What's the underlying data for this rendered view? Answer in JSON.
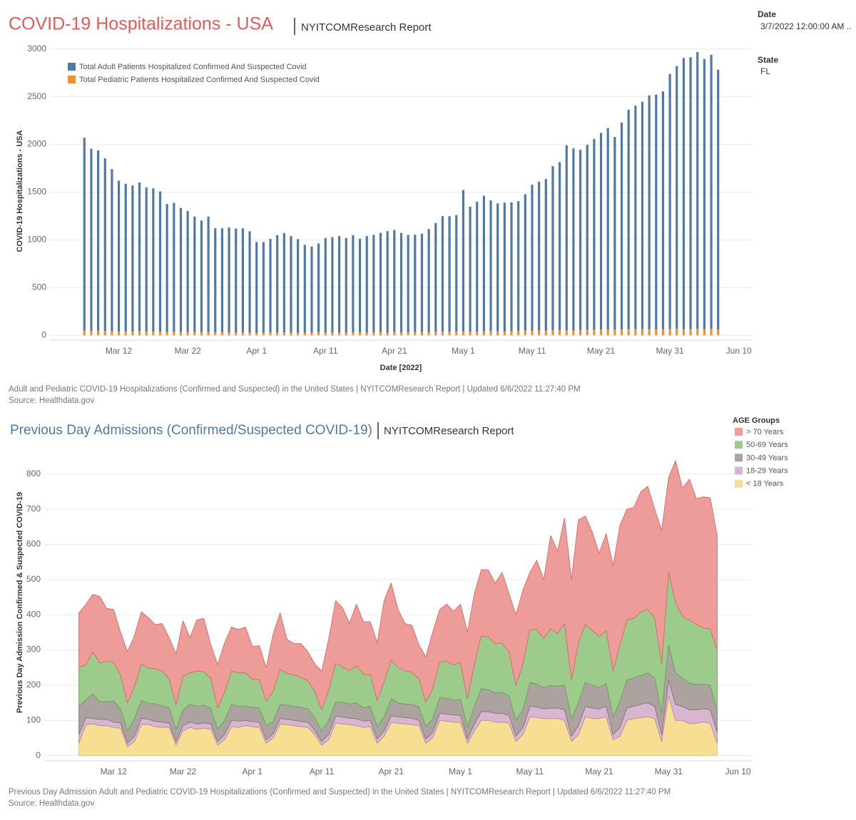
{
  "filters": [
    {
      "label": "Date",
      "value": "3/7/2022 12:00:00 AM .."
    },
    {
      "label": "State",
      "value": "FL"
    }
  ],
  "chart_data": [
    {
      "type": "bar",
      "stacked": true,
      "title": "COVID-19 Hospitalizations - USA",
      "subtitle": "NYITCOMResearch Report",
      "y_label": "COVID-19 Hospitalizations - USA",
      "x_label": "Date [2022]",
      "caption": "Adult and Pediatric COVID-19 Hospitalizations (Confirmed and Suspected) in the United States | NYITCOMResearch Report | Updated 6/6/2022 11:27:40 PM",
      "source": "Source: Healthdata.gov",
      "legend": "top-left",
      "grid": true,
      "x": [
        "2022-03-07",
        "2022-03-08",
        "2022-03-09",
        "2022-03-10",
        "2022-03-11",
        "2022-03-12",
        "2022-03-13",
        "2022-03-14",
        "2022-03-15",
        "2022-03-16",
        "2022-03-17",
        "2022-03-18",
        "2022-03-19",
        "2022-03-20",
        "2022-03-21",
        "2022-03-22",
        "2022-03-23",
        "2022-03-24",
        "2022-03-25",
        "2022-03-26",
        "2022-03-27",
        "2022-03-28",
        "2022-03-29",
        "2022-03-30",
        "2022-03-31",
        "2022-04-01",
        "2022-04-02",
        "2022-04-03",
        "2022-04-04",
        "2022-04-05",
        "2022-04-06",
        "2022-04-07",
        "2022-04-08",
        "2022-04-09",
        "2022-04-10",
        "2022-04-11",
        "2022-04-12",
        "2022-04-13",
        "2022-04-14",
        "2022-04-15",
        "2022-04-16",
        "2022-04-17",
        "2022-04-18",
        "2022-04-19",
        "2022-04-20",
        "2022-04-21",
        "2022-04-22",
        "2022-04-23",
        "2022-04-24",
        "2022-04-25",
        "2022-04-26",
        "2022-04-27",
        "2022-04-28",
        "2022-04-29",
        "2022-04-30",
        "2022-05-01",
        "2022-05-02",
        "2022-05-03",
        "2022-05-04",
        "2022-05-05",
        "2022-05-06",
        "2022-05-07",
        "2022-05-08",
        "2022-05-09",
        "2022-05-10",
        "2022-05-11",
        "2022-05-12",
        "2022-05-13",
        "2022-05-14",
        "2022-05-15",
        "2022-05-16",
        "2022-05-17",
        "2022-05-18",
        "2022-05-19",
        "2022-05-20",
        "2022-05-21",
        "2022-05-22",
        "2022-05-23",
        "2022-05-24",
        "2022-05-25",
        "2022-05-26",
        "2022-05-27",
        "2022-05-28",
        "2022-05-29",
        "2022-05-30",
        "2022-05-31",
        "2022-06-01",
        "2022-06-02",
        "2022-06-03",
        "2022-06-04",
        "2022-06-05",
        "2022-06-06",
        "2022-06-07"
      ],
      "series": [
        {
          "name": "Total Adult Patients Hospitalized Confirmed And Suspected Covid",
          "color": "#4e79a7",
          "values": [
            2020,
            1910,
            1890,
            1810,
            1700,
            1580,
            1550,
            1530,
            1560,
            1510,
            1500,
            1470,
            1340,
            1350,
            1300,
            1270,
            1210,
            1170,
            1210,
            1090,
            1090,
            1100,
            1090,
            1090,
            1060,
            950,
            950,
            980,
            1020,
            1040,
            1010,
            980,
            920,
            900,
            930,
            990,
            1000,
            1010,
            990,
            1020,
            980,
            1010,
            1020,
            1040,
            1060,
            1070,
            1040,
            1020,
            1020,
            1030,
            1080,
            1140,
            1210,
            1210,
            1220,
            1480,
            1310,
            1360,
            1420,
            1370,
            1340,
            1350,
            1350,
            1360,
            1430,
            1530,
            1560,
            1590,
            1720,
            1760,
            1940,
            1910,
            1890,
            1940,
            2000,
            2060,
            2110,
            2020,
            2170,
            2300,
            2340,
            2380,
            2450,
            2460,
            2490,
            2670,
            2750,
            2840,
            2850,
            2900,
            2830,
            2870,
            2720
          ]
        },
        {
          "name": "Total Pediatric Patients Hospitalized Confirmed And Suspected Covid",
          "color": "#f28e2b",
          "values": [
            50,
            45,
            48,
            45,
            42,
            40,
            38,
            40,
            42,
            40,
            40,
            38,
            36,
            38,
            35,
            34,
            35,
            33,
            34,
            32,
            32,
            30,
            30,
            32,
            30,
            28,
            28,
            30,
            30,
            32,
            30,
            28,
            28,
            30,
            32,
            30,
            30,
            32,
            30,
            30,
            32,
            30,
            32,
            34,
            32,
            34,
            33,
            32,
            34,
            35,
            34,
            36,
            38,
            38,
            40,
            42,
            38,
            40,
            42,
            44,
            42,
            40,
            44,
            46,
            48,
            48,
            50,
            48,
            52,
            54,
            52,
            50,
            55,
            56,
            58,
            60,
            62,
            58,
            60,
            64,
            66,
            68,
            64,
            62,
            66,
            68,
            70,
            66,
            64,
            68,
            66,
            70,
            62
          ]
        }
      ],
      "xlim": [
        "2022-03-02",
        "2022-06-12"
      ],
      "xticks": [
        {
          "value": "2022-03-12",
          "label": "Mar 12"
        },
        {
          "value": "2022-03-22",
          "label": "Mar 22"
        },
        {
          "value": "2022-04-01",
          "label": "Apr 1"
        },
        {
          "value": "2022-04-11",
          "label": "Apr 11"
        },
        {
          "value": "2022-04-21",
          "label": "Apr 21"
        },
        {
          "value": "2022-05-01",
          "label": "May 1"
        },
        {
          "value": "2022-05-11",
          "label": "May 11"
        },
        {
          "value": "2022-05-21",
          "label": "May 21"
        },
        {
          "value": "2022-05-31",
          "label": "May 31"
        },
        {
          "value": "2022-06-10",
          "label": "Jun 10"
        }
      ],
      "ylim": [
        -50,
        3050
      ],
      "yticks": [
        0,
        500,
        1000,
        1500,
        2000,
        2500,
        3000
      ]
    },
    {
      "type": "area",
      "stacked": true,
      "title": "Previous Day Admissions (Confirmed/Suspected COVID-19)",
      "subtitle": "NYITCOMResearch Report",
      "y_label": "Previous Day Admission Confirmed & Suspected COVID-19",
      "caption": "Previous Day Admission Adult and Pediatric COVID-19 Hospitalizations (Confirmed and Suspected) in the United States | NYITCOMResearch Report | Updated 6/6/2022 11:27:40 PM",
      "source": "Source: Healthdata.gov",
      "legend_title": "AGE Groups",
      "legend": "outside-right",
      "grid": true,
      "x": [
        "2022-03-07",
        "2022-03-08",
        "2022-03-09",
        "2022-03-10",
        "2022-03-11",
        "2022-03-12",
        "2022-03-13",
        "2022-03-14",
        "2022-03-15",
        "2022-03-16",
        "2022-03-17",
        "2022-03-18",
        "2022-03-19",
        "2022-03-20",
        "2022-03-21",
        "2022-03-22",
        "2022-03-23",
        "2022-03-24",
        "2022-03-25",
        "2022-03-26",
        "2022-03-27",
        "2022-03-28",
        "2022-03-29",
        "2022-03-30",
        "2022-03-31",
        "2022-04-01",
        "2022-04-02",
        "2022-04-03",
        "2022-04-04",
        "2022-04-05",
        "2022-04-06",
        "2022-04-07",
        "2022-04-08",
        "2022-04-09",
        "2022-04-10",
        "2022-04-11",
        "2022-04-12",
        "2022-04-13",
        "2022-04-14",
        "2022-04-15",
        "2022-04-16",
        "2022-04-17",
        "2022-04-18",
        "2022-04-19",
        "2022-04-20",
        "2022-04-21",
        "2022-04-22",
        "2022-04-23",
        "2022-04-24",
        "2022-04-25",
        "2022-04-26",
        "2022-04-27",
        "2022-04-28",
        "2022-04-29",
        "2022-04-30",
        "2022-05-01",
        "2022-05-02",
        "2022-05-03",
        "2022-05-04",
        "2022-05-05",
        "2022-05-06",
        "2022-05-07",
        "2022-05-08",
        "2022-05-09",
        "2022-05-10",
        "2022-05-11",
        "2022-05-12",
        "2022-05-13",
        "2022-05-14",
        "2022-05-15",
        "2022-05-16",
        "2022-05-17",
        "2022-05-18",
        "2022-05-19",
        "2022-05-20",
        "2022-05-21",
        "2022-05-22",
        "2022-05-23",
        "2022-05-24",
        "2022-05-25",
        "2022-05-26",
        "2022-05-27",
        "2022-05-28",
        "2022-05-29",
        "2022-05-30",
        "2022-05-31",
        "2022-06-01",
        "2022-06-02",
        "2022-06-03",
        "2022-06-04",
        "2022-06-05",
        "2022-06-06",
        "2022-06-07"
      ],
      "series": [
        {
          "name": "> 70 Years",
          "color": "#ee9c99",
          "values": [
            155,
            172,
            163,
            189,
            150,
            150,
            122,
            145,
            145,
            147,
            144,
            125,
            135,
            118,
            143,
            158,
            100,
            145,
            152,
            95,
            123,
            140,
            125,
            123,
            130,
            93,
            97,
            95,
            163,
            160,
            97,
            88,
            96,
            82,
            78,
            110,
            145,
            178,
            168,
            134,
            175,
            149,
            150,
            163,
            230,
            219,
            165,
            134,
            134,
            97,
            128,
            160,
            150,
            162,
            153,
            165,
            188,
            200,
            188,
            191,
            172,
            200,
            166,
            200,
            210,
            162,
            197,
            167,
            265,
            233,
            300,
            285,
            350,
            307,
            280,
            237,
            275,
            300,
            340,
            315,
            315,
            342,
            350,
            310,
            380,
            270,
            403,
            365,
            400,
            358,
            372,
            372,
            325
          ]
        },
        {
          "name": "50-69 Years",
          "color": "#9ccb8c",
          "values": [
            110,
            100,
            120,
            110,
            115,
            110,
            95,
            80,
            90,
            105,
            100,
            100,
            100,
            80,
            70,
            95,
            90,
            100,
            95,
            85,
            60,
            80,
            95,
            95,
            95,
            80,
            80,
            70,
            85,
            100,
            90,
            90,
            85,
            80,
            75,
            60,
            85,
            110,
            100,
            95,
            105,
            95,
            90,
            75,
            100,
            110,
            100,
            95,
            90,
            80,
            70,
            85,
            100,
            105,
            100,
            105,
            80,
            120,
            150,
            150,
            140,
            140,
            125,
            100,
            130,
            150,
            155,
            140,
            160,
            150,
            175,
            110,
            170,
            165,
            155,
            145,
            150,
            130,
            160,
            170,
            170,
            180,
            180,
            170,
            140,
            205,
            200,
            175,
            180,
            170,
            160,
            160,
            175
          ]
        },
        {
          "name": "30-49 Years",
          "color": "#aca2a0",
          "values": [
            80,
            50,
            70,
            50,
            50,
            60,
            40,
            35,
            50,
            50,
            45,
            50,
            45,
            45,
            35,
            45,
            50,
            50,
            50,
            45,
            35,
            40,
            45,
            42,
            40,
            40,
            40,
            40,
            35,
            40,
            40,
            40,
            40,
            38,
            35,
            30,
            40,
            40,
            42,
            40,
            45,
            38,
            40,
            35,
            40,
            48,
            40,
            38,
            40,
            38,
            35,
            40,
            45,
            45,
            42,
            45,
            35,
            50,
            65,
            62,
            58,
            60,
            55,
            45,
            50,
            68,
            65,
            60,
            65,
            62,
            70,
            50,
            65,
            68,
            65,
            60,
            65,
            50,
            75,
            80,
            80,
            82,
            85,
            80,
            60,
            100,
            90,
            80,
            75,
            72,
            70,
            70,
            60
          ]
        },
        {
          "name": "18-29 Years",
          "color": "#d8b5d0",
          "values": [
            25,
            20,
            15,
            18,
            18,
            15,
            15,
            10,
            15,
            18,
            15,
            15,
            15,
            12,
            10,
            15,
            15,
            15,
            15,
            15,
            10,
            15,
            18,
            18,
            15,
            15,
            15,
            10,
            12,
            15,
            15,
            15,
            15,
            15,
            12,
            10,
            15,
            20,
            20,
            18,
            20,
            18,
            18,
            12,
            15,
            18,
            18,
            18,
            18,
            15,
            12,
            15,
            20,
            20,
            20,
            20,
            12,
            20,
            25,
            25,
            25,
            25,
            22,
            15,
            20,
            30,
            30,
            28,
            30,
            30,
            30,
            15,
            25,
            30,
            30,
            28,
            30,
            15,
            25,
            35,
            35,
            38,
            40,
            35,
            20,
            45,
            45,
            40,
            40,
            38,
            38,
            38,
            30
          ]
        },
        {
          "name": "< 18 Years",
          "color": "#f6df92",
          "values": [
            35,
            88,
            90,
            85,
            85,
            80,
            78,
            25,
            40,
            88,
            88,
            82,
            80,
            80,
            30,
            70,
            80,
            75,
            78,
            75,
            30,
            45,
            82,
            80,
            85,
            82,
            80,
            35,
            50,
            90,
            88,
            85,
            82,
            80,
            60,
            30,
            45,
            92,
            90,
            88,
            85,
            80,
            82,
            35,
            55,
            95,
            92,
            90,
            88,
            85,
            35,
            50,
            100,
            98,
            95,
            95,
            35,
            70,
            100,
            100,
            95,
            95,
            92,
            40,
            60,
            110,
            108,
            105,
            105,
            105,
            100,
            40,
            60,
            110,
            105,
            105,
            110,
            45,
            55,
            100,
            105,
            108,
            110,
            105,
            40,
            170,
            100,
            100,
            90,
            92,
            95,
            92,
            35
          ]
        }
      ],
      "xlim": [
        "2022-03-02",
        "2022-06-12"
      ],
      "xticks": [
        {
          "value": "2022-03-12",
          "label": "Mar 12"
        },
        {
          "value": "2022-03-22",
          "label": "Mar 22"
        },
        {
          "value": "2022-04-01",
          "label": "Apr 1"
        },
        {
          "value": "2022-04-11",
          "label": "Apr 11"
        },
        {
          "value": "2022-04-21",
          "label": "Apr 21"
        },
        {
          "value": "2022-05-01",
          "label": "May 1"
        },
        {
          "value": "2022-05-11",
          "label": "May 11"
        },
        {
          "value": "2022-05-21",
          "label": "May 21"
        },
        {
          "value": "2022-05-31",
          "label": "May 31"
        },
        {
          "value": "2022-06-10",
          "label": "Jun 10"
        }
      ],
      "ylim": [
        -15,
        840
      ],
      "yticks": [
        0,
        100,
        200,
        300,
        400,
        500,
        600,
        700,
        800
      ]
    }
  ]
}
